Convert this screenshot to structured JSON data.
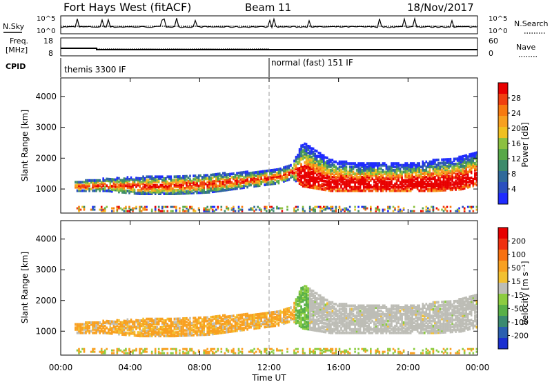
{
  "header": {
    "title": "Fort Hays West (fitACF)",
    "beam": "Beam 11",
    "date": "18/Nov/2017"
  },
  "small_panels": {
    "nsky_label": "N.Sky",
    "nsky_ticks": [
      "10^5",
      "10^0"
    ],
    "nsearch_ticks": [
      "10^5",
      "10^0"
    ],
    "nsearch_label": "N.Search",
    "freq_label_1": "Freq.",
    "freq_label_2": "[MHz]",
    "freq_ticks": [
      "18",
      "8"
    ],
    "nave_ticks": [
      "60",
      "0"
    ],
    "nave_label": "Nave",
    "cpid_label": "CPID",
    "cpid_segments": [
      {
        "label": "themis 3300 IF",
        "start_hour": 0
      },
      {
        "label": "normal (fast) 151 IF",
        "start_hour": 12
      }
    ]
  },
  "power_colorbar": {
    "label": "Power [dB]",
    "ticks": [
      "4",
      "8",
      "12",
      "16",
      "20",
      "24",
      "28"
    ],
    "colors": [
      "#1f2bff",
      "#2a4fbf",
      "#2f6a9a",
      "#3c8a6a",
      "#58a848",
      "#8cc040",
      "#f0c020",
      "#f7a020",
      "#f77a10",
      "#f04010",
      "#e80000"
    ]
  },
  "velocity_colorbar": {
    "label": "Velocity [m s⁻¹]",
    "ticks": [
      "200",
      "100",
      "50",
      "15",
      "-15",
      "-50",
      "-100",
      "-200"
    ],
    "colors": [
      "#1a2fd0",
      "#2a5fb0",
      "#3a8a70",
      "#58b048",
      "#8ccc40",
      "#bdbdb6",
      "#f2c030",
      "#f8a020",
      "#f77010",
      "#f03010",
      "#e80000"
    ]
  },
  "chart_data": [
    {
      "type": "heatmap",
      "name": "power",
      "ylabel": "Slant Range [km]",
      "yticks": [
        "1000",
        "2000",
        "3000",
        "4000"
      ],
      "ylim": [
        220,
        4600
      ],
      "x_range_hours": [
        0,
        24
      ],
      "bands": [
        {
          "x": [
            0.8,
            2.5,
            4.5,
            6.5,
            8.5,
            10.5,
            12.5,
            13.3
          ],
          "y_low": [
            900,
            900,
            800,
            800,
            850,
            1000,
            1150,
            1300
          ],
          "y_high": [
            1200,
            1300,
            1350,
            1400,
            1450,
            1500,
            1600,
            1750
          ]
        },
        {
          "x": [
            13.3,
            13.9,
            15.5,
            17,
            18.5,
            20,
            21.5,
            23,
            24
          ],
          "y_low": [
            1300,
            1050,
            900,
            900,
            900,
            900,
            900,
            950,
            1100
          ],
          "y_high": [
            1750,
            2500,
            1900,
            1800,
            1800,
            1800,
            1900,
            2000,
            2200
          ]
        }
      ]
    },
    {
      "type": "heatmap",
      "name": "velocity",
      "ylabel": "Slant Range [km]",
      "yticks": [
        "1000",
        "2000",
        "3000",
        "4000"
      ],
      "ylim": [
        220,
        4600
      ],
      "xlabel": "Time UT",
      "xticks": [
        "00:00",
        "04:00",
        "08:00",
        "12:00",
        "16:00",
        "20:00",
        "00:00"
      ],
      "x_range_hours": [
        0,
        24
      ]
    }
  ]
}
